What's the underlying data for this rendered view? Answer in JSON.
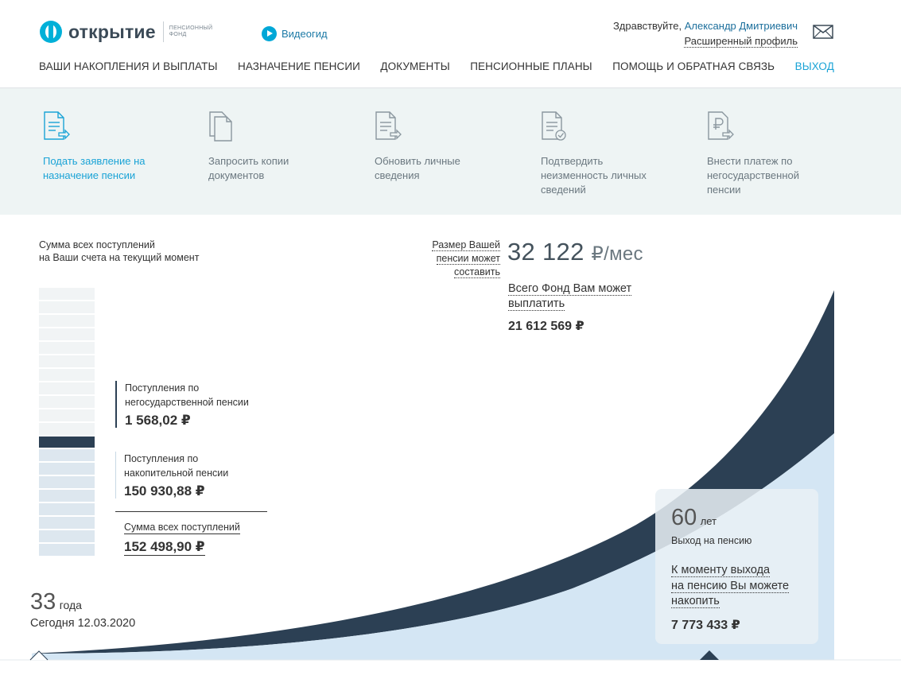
{
  "header": {
    "logo_name": "открытие",
    "logo_sub": "пенсионный фонд",
    "video_label": "Видеогид",
    "greeting": "Здравствуйте,",
    "user_name": "Александр Дмитриевич",
    "profile_link": "Расширенный профиль",
    "nav": [
      "ВАШИ НАКОПЛЕНИЯ И ВЫПЛАТЫ",
      "НАЗНАЧЕНИЕ ПЕНСИИ",
      "ДОКУМЕНТЫ",
      "ПЕНСИОННЫЕ ПЛАНЫ",
      "ПОМОЩЬ И ОБРАТНАЯ СВЯЗЬ",
      "ВЫХОД"
    ]
  },
  "actions": [
    {
      "label": "Подать заявление на назначение пенсии",
      "icon": "doc-arrow-icon"
    },
    {
      "label": "Запросить копии документов",
      "icon": "doc-copies-icon"
    },
    {
      "label": "Обновить личные сведения",
      "icon": "doc-update-icon"
    },
    {
      "label": "Подтвердить неизменность личных сведений",
      "icon": "doc-check-icon"
    },
    {
      "label": "Внести платеж по негосударственной пенсии",
      "icon": "ruble-doc-icon"
    }
  ],
  "summary": {
    "title_line1": "Сумма всех поступлений",
    "title_line2": "на Ваши счета на текущий момент",
    "npo_label_line1": "Поступления по",
    "npo_label_line2": "негосударственной пенсии",
    "npo_value": "1 568,02 ₽",
    "acc_label_line1": "Поступления по",
    "acc_label_line2": "накопительной пенсии",
    "acc_value": "150 930,88 ₽",
    "total_label": "Сумма всех поступлений",
    "total_value": "152 498,90 ₽"
  },
  "pension": {
    "label_line1": "Размер Вашей",
    "label_line2": "пенсии может",
    "label_line3": "составить",
    "amount": "32 122",
    "unit": "₽/мес",
    "pay_label_line1": "Всего Фонд Вам может",
    "pay_label_line2": "выплатить",
    "pay_value": "21 612 569 ₽"
  },
  "timeline": {
    "current_age": "33",
    "current_age_unit": "года",
    "today_label": "Сегодня 12.03.2020",
    "retire_age": "60",
    "retire_age_unit": "лет",
    "retire_label": "Выход на пенсию",
    "accum_line1": "К моменту выхода",
    "accum_line2": "на пенсию Вы можете",
    "accum_line3": "накопить",
    "accum_value": "7 773 433 ₽"
  },
  "colors": {
    "accent": "#1aa3d6",
    "dark_series": "#2c4054",
    "light_series": "#d4e6f4"
  }
}
